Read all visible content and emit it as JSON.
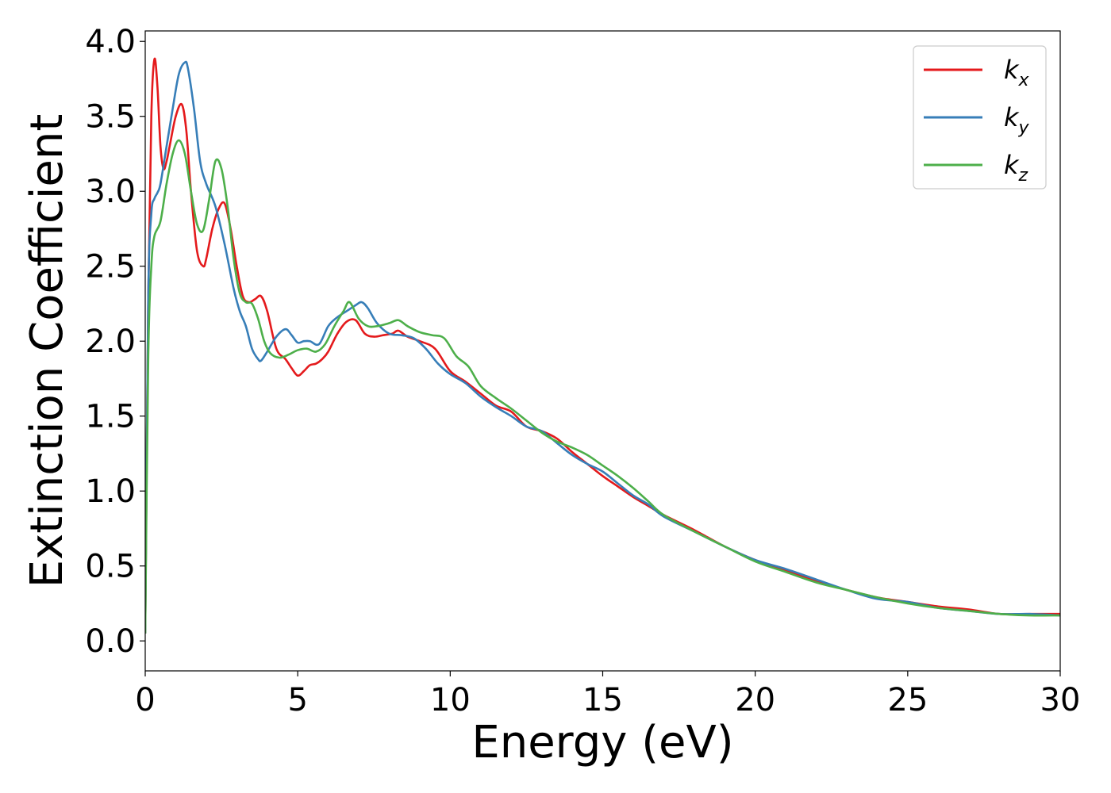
{
  "chart_data": {
    "type": "line",
    "xlabel": "Energy (eV)",
    "ylabel": "Extinction Coefficient",
    "xlim": [
      0,
      30
    ],
    "ylim": [
      -0.2,
      4.07
    ],
    "x_ticks": [
      0,
      5,
      10,
      15,
      20,
      25,
      30
    ],
    "x_tick_labels": [
      "0",
      "5",
      "10",
      "15",
      "20",
      "25",
      "30"
    ],
    "y_ticks": [
      0.0,
      0.5,
      1.0,
      1.5,
      2.0,
      2.5,
      3.0,
      3.5,
      4.0
    ],
    "y_tick_labels": [
      "0.0",
      "0.5",
      "1.0",
      "1.5",
      "2.0",
      "2.5",
      "3.0",
      "3.5",
      "4.0"
    ],
    "grid": false,
    "legend_position": "top-right",
    "series": [
      {
        "name": "k_x",
        "legend_base": "k",
        "legend_sub": "x",
        "color": "#e41a1c",
        "x": [
          0,
          0.1,
          0.2,
          0.3,
          0.4,
          0.5,
          0.6,
          0.7,
          0.8,
          1.0,
          1.2,
          1.35,
          1.5,
          1.7,
          1.9,
          2.0,
          2.2,
          2.4,
          2.6,
          2.8,
          3.0,
          3.2,
          3.4,
          3.6,
          3.8,
          4.0,
          4.3,
          4.6,
          4.8,
          5.0,
          5.2,
          5.4,
          5.6,
          5.8,
          6.0,
          6.3,
          6.6,
          6.9,
          7.2,
          7.5,
          7.8,
          8.1,
          8.3,
          8.6,
          9.0,
          9.5,
          10.0,
          10.5,
          11.0,
          11.5,
          12.0,
          12.5,
          13.0,
          13.5,
          14.0,
          14.5,
          15.0,
          15.5,
          16.0,
          16.5,
          17.0,
          18.0,
          19.0,
          20.0,
          21.0,
          22.0,
          23.0,
          24.0,
          25.0,
          26.0,
          27.0,
          28.0,
          29.0,
          30.0
        ],
        "values": [
          0.05,
          2.3,
          3.5,
          3.88,
          3.7,
          3.3,
          3.15,
          3.2,
          3.3,
          3.5,
          3.58,
          3.4,
          3.0,
          2.6,
          2.5,
          2.55,
          2.75,
          2.88,
          2.92,
          2.75,
          2.5,
          2.3,
          2.26,
          2.28,
          2.3,
          2.2,
          1.95,
          1.88,
          1.82,
          1.77,
          1.8,
          1.84,
          1.85,
          1.88,
          1.93,
          2.05,
          2.13,
          2.14,
          2.05,
          2.03,
          2.04,
          2.05,
          2.07,
          2.03,
          2.0,
          1.95,
          1.8,
          1.73,
          1.65,
          1.57,
          1.53,
          1.43,
          1.4,
          1.35,
          1.26,
          1.18,
          1.1,
          1.03,
          0.96,
          0.9,
          0.84,
          0.74,
          0.63,
          0.54,
          0.47,
          0.4,
          0.34,
          0.29,
          0.26,
          0.23,
          0.21,
          0.18,
          0.18,
          0.18
        ]
      },
      {
        "name": "k_y",
        "legend_base": "k",
        "legend_sub": "y",
        "color": "#377eb8",
        "x": [
          0,
          0.1,
          0.2,
          0.3,
          0.4,
          0.5,
          0.7,
          0.9,
          1.1,
          1.3,
          1.4,
          1.6,
          1.8,
          2.0,
          2.3,
          2.6,
          2.9,
          3.1,
          3.3,
          3.5,
          3.7,
          3.8,
          4.0,
          4.3,
          4.6,
          4.8,
          5.0,
          5.2,
          5.4,
          5.7,
          6.0,
          6.3,
          6.6,
          6.9,
          7.1,
          7.3,
          7.6,
          8.0,
          8.4,
          8.8,
          9.2,
          9.6,
          10.0,
          10.5,
          11.0,
          11.5,
          12.0,
          12.5,
          13.0,
          13.5,
          14.0,
          14.5,
          15.0,
          15.5,
          16.0,
          16.5,
          17.0,
          18.0,
          19.0,
          20.0,
          21.0,
          22.0,
          23.0,
          24.0,
          25.0,
          26.0,
          27.0,
          28.0,
          29.0,
          30.0
        ],
        "values": [
          0.05,
          2.3,
          2.85,
          2.95,
          2.99,
          3.05,
          3.3,
          3.55,
          3.78,
          3.86,
          3.82,
          3.55,
          3.2,
          3.05,
          2.9,
          2.65,
          2.35,
          2.2,
          2.1,
          1.95,
          1.88,
          1.87,
          1.93,
          2.03,
          2.08,
          2.04,
          1.99,
          2.0,
          2.0,
          1.98,
          2.1,
          2.16,
          2.2,
          2.24,
          2.26,
          2.22,
          2.12,
          2.05,
          2.04,
          2.02,
          1.95,
          1.85,
          1.78,
          1.72,
          1.63,
          1.56,
          1.5,
          1.43,
          1.4,
          1.32,
          1.24,
          1.18,
          1.13,
          1.05,
          0.97,
          0.91,
          0.83,
          0.73,
          0.63,
          0.54,
          0.48,
          0.41,
          0.34,
          0.28,
          0.26,
          0.22,
          0.2,
          0.18,
          0.18,
          0.17
        ]
      },
      {
        "name": "k_z",
        "legend_base": "k",
        "legend_sub": "z",
        "color": "#4daf4a",
        "x": [
          0,
          0.1,
          0.2,
          0.3,
          0.5,
          0.7,
          0.9,
          1.1,
          1.3,
          1.5,
          1.7,
          1.9,
          2.1,
          2.3,
          2.5,
          2.7,
          2.9,
          3.1,
          3.3,
          3.5,
          3.7,
          3.9,
          4.1,
          4.4,
          4.7,
          5.0,
          5.3,
          5.6,
          5.9,
          6.2,
          6.5,
          6.7,
          7.0,
          7.3,
          7.6,
          8.0,
          8.3,
          8.6,
          9.0,
          9.4,
          9.8,
          10.2,
          10.6,
          11.0,
          11.5,
          12.0,
          12.5,
          13.0,
          13.5,
          14.0,
          14.5,
          15.0,
          15.5,
          16.0,
          16.5,
          17.0,
          18.0,
          19.0,
          20.0,
          21.0,
          22.0,
          23.0,
          24.0,
          25.0,
          26.0,
          27.0,
          28.0,
          29.0,
          30.0
        ],
        "values": [
          0.05,
          1.9,
          2.5,
          2.7,
          2.8,
          3.05,
          3.25,
          3.34,
          3.25,
          3.0,
          2.78,
          2.74,
          2.95,
          3.2,
          3.15,
          2.9,
          2.55,
          2.32,
          2.26,
          2.25,
          2.15,
          2.0,
          1.92,
          1.89,
          1.91,
          1.94,
          1.95,
          1.93,
          1.98,
          2.1,
          2.2,
          2.26,
          2.15,
          2.1,
          2.1,
          2.12,
          2.14,
          2.1,
          2.06,
          2.04,
          2.02,
          1.9,
          1.83,
          1.7,
          1.62,
          1.55,
          1.47,
          1.39,
          1.33,
          1.29,
          1.24,
          1.17,
          1.1,
          1.02,
          0.93,
          0.84,
          0.73,
          0.63,
          0.53,
          0.46,
          0.39,
          0.34,
          0.29,
          0.25,
          0.22,
          0.2,
          0.18,
          0.17,
          0.17
        ]
      }
    ]
  }
}
